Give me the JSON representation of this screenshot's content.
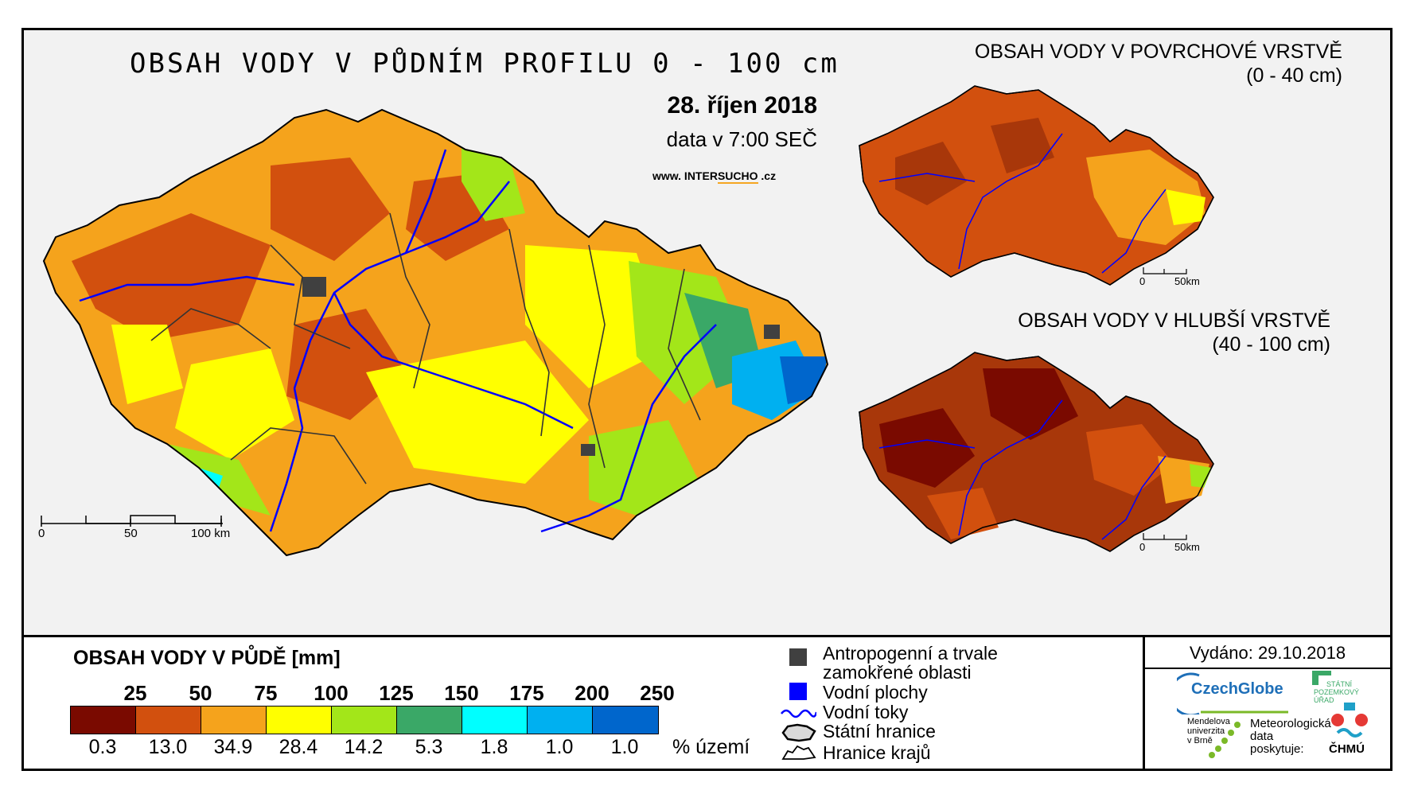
{
  "main": {
    "title": "OBSAH VODY V PŮDNÍM PROFILU 0 - 100 cm",
    "date": "28. říjen 2018",
    "time": "data v 7:00 SEČ",
    "website_prefix": "www. INTER",
    "website_brand": "SUCHO",
    "website_suffix": " .cz",
    "scale": {
      "t0": "0",
      "t1": "50",
      "t2": "100 km"
    }
  },
  "surface_map": {
    "title_line1": "OBSAH VODY V POVRCHOVÉ VRSTVĚ",
    "title_line2": "(0 - 40 cm)",
    "scale0": "0",
    "scale1": "50km"
  },
  "deep_map": {
    "title_line1": "OBSAH VODY V HLUBŠÍ VRSTVĚ",
    "title_line2": "(40 - 100 cm)",
    "scale0": "0",
    "scale1": "50km"
  },
  "legend": {
    "title": "OBSAH VODY V PŮDĚ [mm]",
    "thresholds": [
      "25",
      "50",
      "75",
      "100",
      "125",
      "150",
      "175",
      "200",
      "250"
    ],
    "classes": [
      {
        "color": "#7a0a00",
        "pct": "0.3"
      },
      {
        "color": "#d2500e",
        "pct": "13.0"
      },
      {
        "color": "#f5a31c",
        "pct": "34.9"
      },
      {
        "color": "#ffff00",
        "pct": "28.4"
      },
      {
        "color": "#a3e619",
        "pct": "14.2"
      },
      {
        "color": "#3aa867",
        "pct": "5.3"
      },
      {
        "color": "#00ffff",
        "pct": "1.8"
      },
      {
        "color": "#00b0f0",
        "pct": "1.0"
      },
      {
        "color": "#0066cc",
        "pct": "1.0"
      }
    ],
    "pct_unit": "% území"
  },
  "symbols": {
    "anthropogenic_line1": "Antropogenní a trvale",
    "anthropogenic_line2": "zamokřené oblasti",
    "water_bodies": "Vodní plochy",
    "rivers": "Vodní toky",
    "state_border": "Státní hranice",
    "region_border": "Hranice krajů",
    "colors": {
      "anthropogenic": "#404040",
      "water": "#0000ff",
      "river": "#0000ff"
    }
  },
  "issued": "Vydáno: 29.10.2018",
  "logos": {
    "czechglobe": "CzechGlobe",
    "mendelu_1": "Mendelova",
    "mendelu_2": "univerzita",
    "mendelu_3": "v Brně",
    "spu_1": "STÁTNÍ",
    "spu_2": "POZEMKOVÝ",
    "spu_3": "ÚŘAD",
    "meteo_1": "Meteorologická",
    "meteo_2": "data",
    "meteo_3": "poskytuje:",
    "chmu": "ČHMÚ"
  }
}
